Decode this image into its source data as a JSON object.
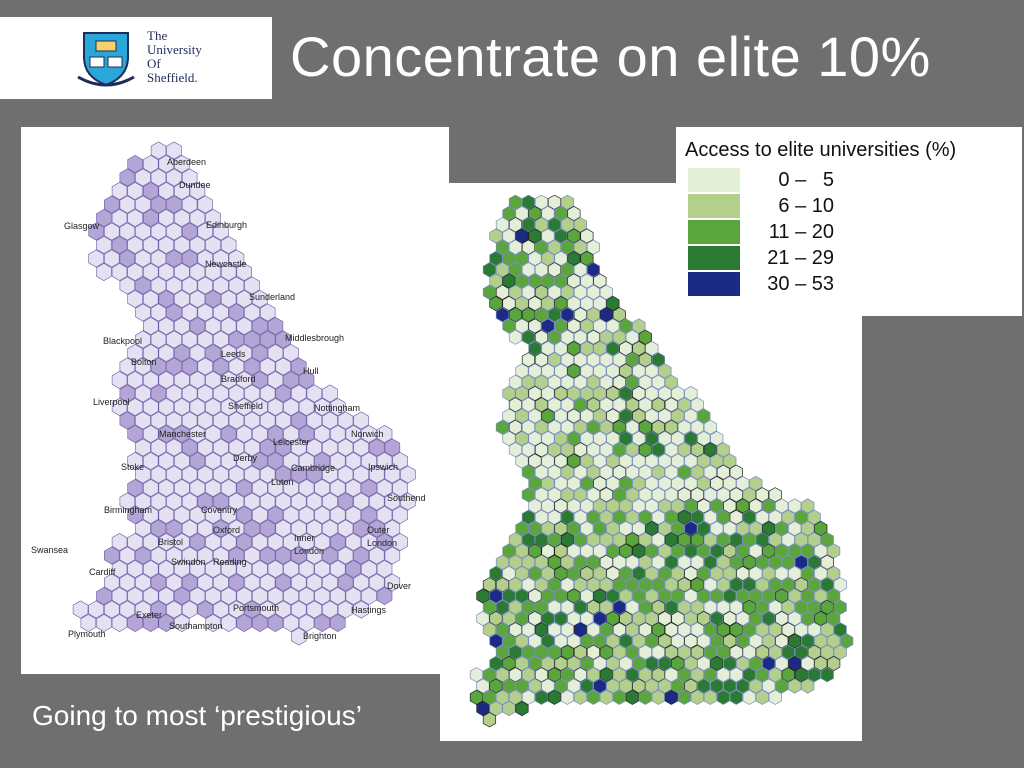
{
  "logo": {
    "lines": [
      "The",
      "University",
      "Of",
      "Sheffield."
    ]
  },
  "title": "Concentrate on elite 10%",
  "caption": "Going to most ‘prestigious’",
  "left_map": {
    "place_labels": [
      "Aberdeen",
      "Dundee",
      "Glasgow",
      "Edinburgh",
      "Newcastle",
      "Sunderland",
      "Middlesbrough",
      "Blackpool",
      "Bolton",
      "Leeds",
      "Bradford",
      "Hull",
      "Liverpool",
      "Sheffield",
      "Nottingham",
      "Manchester",
      "Leicester",
      "Norwich",
      "Derby",
      "Stoke",
      "Cambridge",
      "Ipswich",
      "Luton",
      "Southend",
      "Birmingham",
      "Coventry",
      "Oxford",
      "Outer",
      "London",
      "Inner",
      "London",
      "Bristol",
      "Swansea",
      "Swindon",
      "Reading",
      "Cardiff",
      "Dover",
      "Exeter",
      "Portsmouth",
      "Hastings",
      "Southampton",
      "Plymouth",
      "Brighton"
    ]
  },
  "legend": {
    "title": "Access to elite universities (%)",
    "items": [
      {
        "label": "0 –   5",
        "color": "#e4efd7"
      },
      {
        "label": "6 – 10",
        "color": "#b2d08c"
      },
      {
        "label": "11 – 20",
        "color": "#5aa63c"
      },
      {
        "label": "21 – 29",
        "color": "#2a7a34"
      },
      {
        "label": "30 – 53",
        "color": "#1b2a85"
      }
    ]
  },
  "colors": {
    "background": "#6f6f6f",
    "hex_light": "#e4e1f2",
    "hex_dark": "#b3a6d6",
    "hex_outline": "#6b5ca5"
  }
}
